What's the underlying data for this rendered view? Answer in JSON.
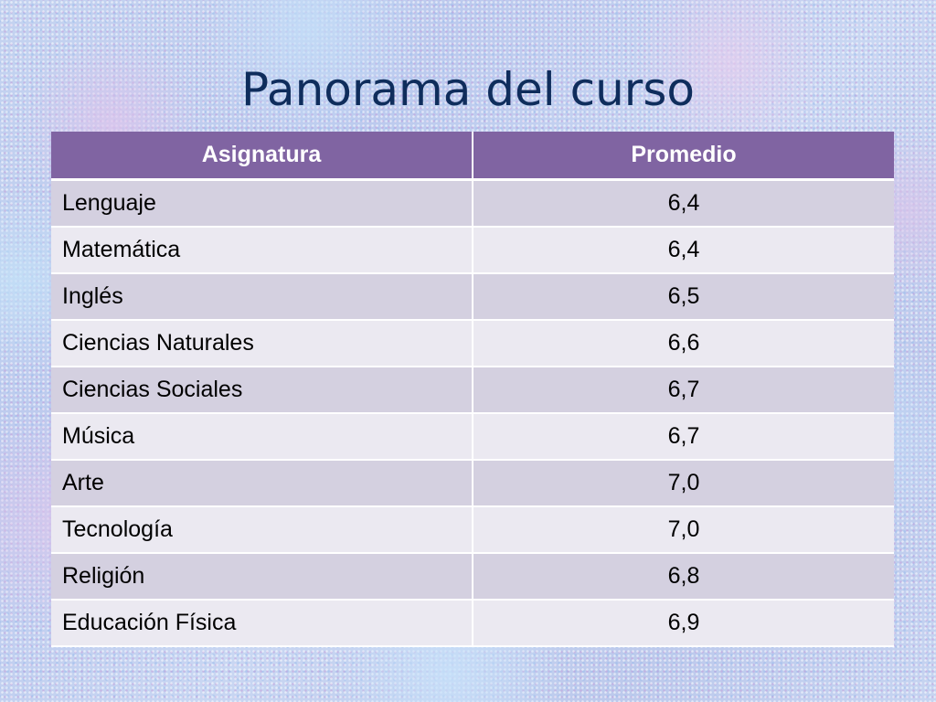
{
  "slide": {
    "title": "Panorama del curso"
  },
  "table": {
    "headers": {
      "subject": "Asignatura",
      "average": "Promedio"
    },
    "rows": [
      {
        "subject": "Lenguaje",
        "average": "6,4"
      },
      {
        "subject": "Matemática",
        "average": "6,4"
      },
      {
        "subject": "Inglés",
        "average": "6,5"
      },
      {
        "subject": "Ciencias Naturales",
        "average": "6,6"
      },
      {
        "subject": "Ciencias Sociales",
        "average": "6,7"
      },
      {
        "subject": "Música",
        "average": "6,7"
      },
      {
        "subject": "Arte",
        "average": "7,0"
      },
      {
        "subject": "Tecnología",
        "average": "7,0"
      },
      {
        "subject": "Religión",
        "average": "6,8"
      },
      {
        "subject": "Educación Física",
        "average": "6,9"
      }
    ]
  },
  "colors": {
    "header_background": "#8064a2",
    "row_odd_background": "#d4d0e0",
    "row_even_background": "#ebe9f1",
    "title_text": "#0f2d5c"
  }
}
